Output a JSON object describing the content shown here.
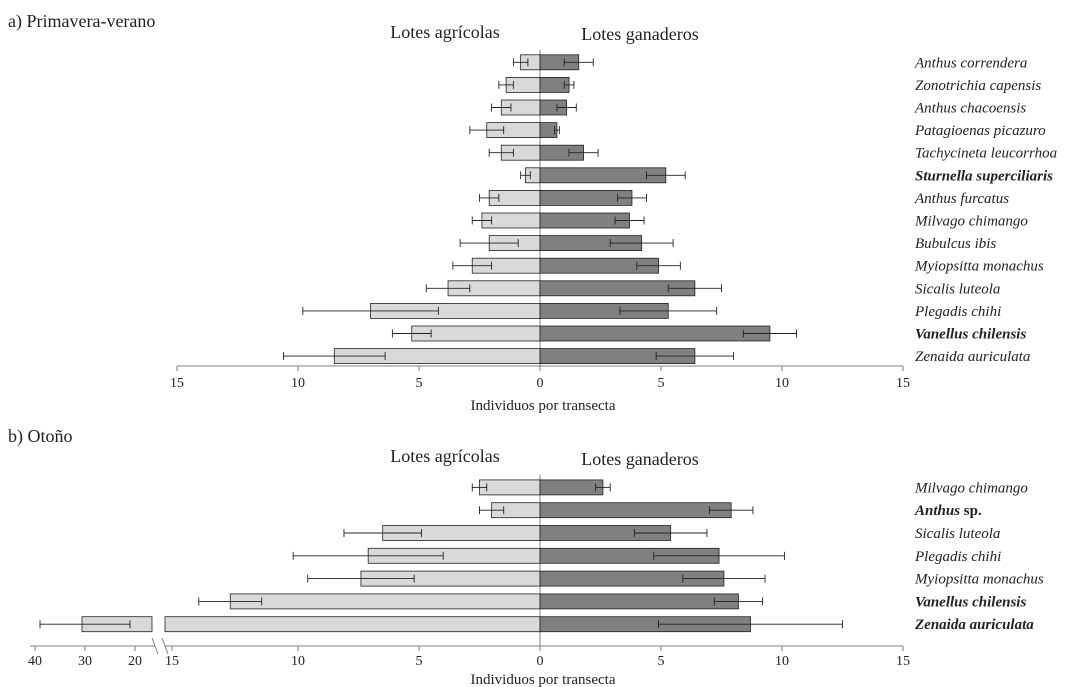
{
  "chart_data": [
    {
      "type": "bar",
      "panel_title": "a) Primavera-verano",
      "left_label": "Lotes agrícolas",
      "right_label": "Lotes ganaderos",
      "xlabel": "Individuos por transecta",
      "xlim": [
        -15,
        15
      ],
      "ticks": [
        15,
        10,
        5,
        0,
        5,
        10,
        15
      ],
      "tick_values": [
        -15,
        -10,
        -5,
        0,
        5,
        10,
        15
      ],
      "bold_species": [
        "Sturnella superciliaris",
        "Vanellus chilensis"
      ],
      "species": [
        "Anthus correndera",
        "Zonotrichia capensis",
        "Anthus chacoensis",
        "Patagioenas picazuro",
        "Tachycineta leucorrhoa",
        "Sturnella superciliaris",
        "Anthus furcatus",
        "Milvago chimango",
        "Bubulcus ibis",
        "Myiopsitta monachus",
        "Sicalis luteola",
        "Plegadis chihi",
        "Vanellus chilensis",
        "Zenaida auriculata"
      ],
      "series": [
        {
          "name": "Lotes agrícolas",
          "values": [
            0.8,
            1.4,
            1.6,
            2.2,
            1.6,
            0.6,
            2.1,
            2.4,
            2.1,
            2.8,
            3.8,
            7.0,
            5.3,
            8.5
          ],
          "errors": [
            0.3,
            0.3,
            0.4,
            0.7,
            0.5,
            0.2,
            0.4,
            0.4,
            1.2,
            0.8,
            0.9,
            2.8,
            0.8,
            2.1
          ]
        },
        {
          "name": "Lotes ganaderos",
          "values": [
            1.6,
            1.2,
            1.1,
            0.7,
            1.8,
            5.2,
            3.8,
            3.7,
            4.2,
            4.9,
            6.4,
            5.3,
            9.5,
            6.4
          ],
          "errors": [
            0.6,
            0.2,
            0.4,
            0.1,
            0.6,
            0.8,
            0.6,
            0.6,
            1.3,
            0.9,
            1.1,
            2.0,
            1.1,
            1.6
          ]
        }
      ]
    },
    {
      "type": "bar",
      "panel_title": "b) Otoño",
      "left_label": "Lotes agrícolas",
      "right_label": "Lotes ganaderos",
      "xlabel": "Individuos por transecta",
      "xlim": [
        -15,
        15
      ],
      "axis_break": true,
      "break_ticks": [
        40,
        30,
        20
      ],
      "break_values": [
        30,
        21
      ],
      "ticks": [
        15,
        10,
        5,
        0,
        5,
        10,
        15
      ],
      "tick_values": [
        -15,
        -10,
        -5,
        0,
        5,
        10,
        15
      ],
      "bold_species": [
        "Anthus sp.",
        "Vanellus chilensis",
        "Zenaida auriculata"
      ],
      "species": [
        "Milvago chimango",
        "Anthus sp.",
        "Sicalis luteola",
        "Plegadis chihi",
        "Myiopsitta monachus",
        "Vanellus chilensis",
        "Zenaida auriculata"
      ],
      "series": [
        {
          "name": "Lotes agrícolas",
          "values": [
            2.5,
            2.0,
            6.5,
            7.1,
            7.4,
            12.8,
            30
          ],
          "errors": [
            0.3,
            0.5,
            1.6,
            3.1,
            2.2,
            1.3,
            9
          ]
        },
        {
          "name": "Lotes ganaderos",
          "values": [
            2.6,
            7.9,
            5.4,
            7.4,
            7.6,
            8.2,
            8.7
          ],
          "errors": [
            0.3,
            0.9,
            1.5,
            2.7,
            1.7,
            1.0,
            3.8
          ]
        }
      ]
    }
  ],
  "colors": {
    "left_bar": "#d9d9d9",
    "right_bar": "#808080",
    "stroke": "#222222",
    "axis": "#7f7f7f"
  }
}
